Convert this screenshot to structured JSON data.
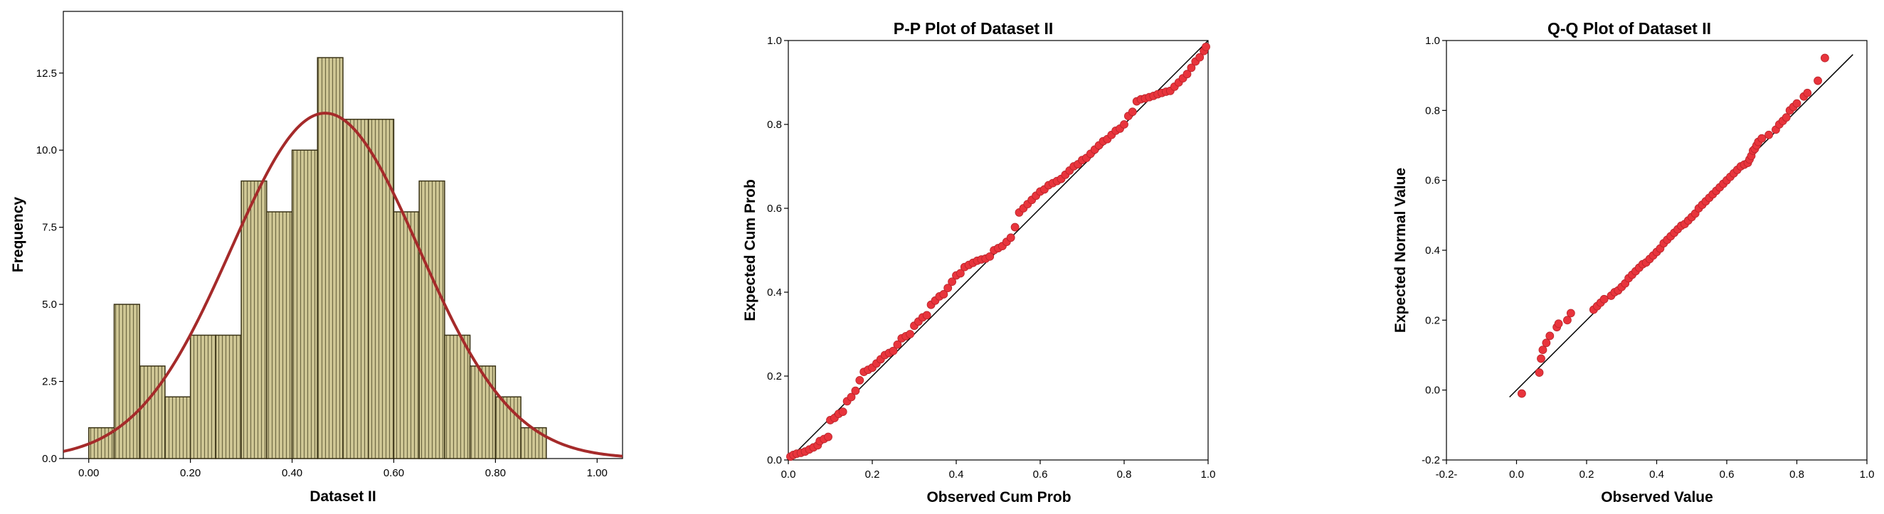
{
  "chart_data": [
    {
      "type": "bar",
      "subtype": "histogram",
      "title": "",
      "xlabel": "Dataset II",
      "ylabel": "Frequency",
      "xlim": [
        -0.05,
        1.05
      ],
      "ylim": [
        0,
        14.5
      ],
      "x_ticks": [
        0.0,
        0.2,
        0.4,
        0.6,
        0.8,
        1.0
      ],
      "x_tick_labels": [
        "0.00",
        "0.20",
        "0.40",
        "0.60",
        "0.80",
        "1.00"
      ],
      "y_ticks": [
        0,
        2.5,
        5,
        7.5,
        10,
        12.5
      ],
      "y_tick_labels": [
        "0.0",
        "2.5",
        "5.0",
        "7.5",
        "10.0",
        "12.5"
      ],
      "bin_width": 0.05,
      "bin_starts": [
        0.0,
        0.05,
        0.1,
        0.15,
        0.2,
        0.25,
        0.3,
        0.35,
        0.4,
        0.45,
        0.5,
        0.55,
        0.6,
        0.65,
        0.7,
        0.75,
        0.8,
        0.85
      ],
      "values": [
        1,
        5,
        3,
        2,
        4,
        4,
        9,
        8,
        10,
        13,
        11,
        11,
        8,
        9,
        4,
        3,
        2,
        1
      ],
      "bar_fill": "#cfc795",
      "bar_stroke": "#3a3316",
      "normal_curve": {
        "mean": 0.465,
        "peak": 11.2,
        "sd": 0.185,
        "color": "#a52a2a"
      },
      "grid": false
    },
    {
      "type": "scatter",
      "title": "P-P Plot of Dataset II",
      "xlabel": "Observed Cum Prob",
      "ylabel": "Expected Cum Prob",
      "xlim": [
        0,
        1
      ],
      "ylim": [
        0,
        1
      ],
      "x_ticks": [
        0,
        0.2,
        0.4,
        0.6,
        0.8,
        1.0
      ],
      "x_tick_labels": [
        "0.0",
        "0.2",
        "0.4",
        "0.6",
        "0.8",
        "1.0"
      ],
      "y_ticks": [
        0,
        0.2,
        0.4,
        0.6,
        0.8,
        1.0
      ],
      "y_tick_labels": [
        "0.0",
        "0.2",
        "0.4",
        "0.6",
        "0.8",
        "1.0"
      ],
      "reference_line": {
        "x": [
          0,
          1
        ],
        "y": [
          0,
          1
        ]
      },
      "point_color": "#e8343c",
      "grid": false,
      "points": [
        [
          0.005,
          0.008
        ],
        [
          0.012,
          0.012
        ],
        [
          0.02,
          0.015
        ],
        [
          0.03,
          0.017
        ],
        [
          0.04,
          0.02
        ],
        [
          0.05,
          0.025
        ],
        [
          0.06,
          0.03
        ],
        [
          0.07,
          0.035
        ],
        [
          0.075,
          0.045
        ],
        [
          0.085,
          0.05
        ],
        [
          0.095,
          0.055
        ],
        [
          0.1,
          0.095
        ],
        [
          0.11,
          0.1
        ],
        [
          0.12,
          0.11
        ],
        [
          0.13,
          0.115
        ],
        [
          0.14,
          0.14
        ],
        [
          0.15,
          0.15
        ],
        [
          0.16,
          0.165
        ],
        [
          0.17,
          0.19
        ],
        [
          0.18,
          0.21
        ],
        [
          0.19,
          0.215
        ],
        [
          0.2,
          0.22
        ],
        [
          0.21,
          0.23
        ],
        [
          0.22,
          0.24
        ],
        [
          0.23,
          0.25
        ],
        [
          0.24,
          0.255
        ],
        [
          0.25,
          0.26
        ],
        [
          0.26,
          0.275
        ],
        [
          0.27,
          0.29
        ],
        [
          0.28,
          0.295
        ],
        [
          0.29,
          0.3
        ],
        [
          0.3,
          0.32
        ],
        [
          0.31,
          0.33
        ],
        [
          0.32,
          0.34
        ],
        [
          0.33,
          0.345
        ],
        [
          0.34,
          0.37
        ],
        [
          0.35,
          0.38
        ],
        [
          0.36,
          0.39
        ],
        [
          0.37,
          0.395
        ],
        [
          0.38,
          0.41
        ],
        [
          0.39,
          0.425
        ],
        [
          0.4,
          0.44
        ],
        [
          0.41,
          0.445
        ],
        [
          0.42,
          0.46
        ],
        [
          0.43,
          0.465
        ],
        [
          0.44,
          0.47
        ],
        [
          0.45,
          0.475
        ],
        [
          0.46,
          0.478
        ],
        [
          0.47,
          0.48
        ],
        [
          0.48,
          0.485
        ],
        [
          0.49,
          0.5
        ],
        [
          0.5,
          0.505
        ],
        [
          0.51,
          0.51
        ],
        [
          0.52,
          0.52
        ],
        [
          0.53,
          0.53
        ],
        [
          0.54,
          0.555
        ],
        [
          0.55,
          0.59
        ],
        [
          0.56,
          0.6
        ],
        [
          0.57,
          0.61
        ],
        [
          0.58,
          0.62
        ],
        [
          0.59,
          0.63
        ],
        [
          0.6,
          0.64
        ],
        [
          0.61,
          0.645
        ],
        [
          0.62,
          0.655
        ],
        [
          0.63,
          0.66
        ],
        [
          0.64,
          0.665
        ],
        [
          0.65,
          0.67
        ],
        [
          0.66,
          0.68
        ],
        [
          0.67,
          0.69
        ],
        [
          0.68,
          0.7
        ],
        [
          0.69,
          0.705
        ],
        [
          0.7,
          0.715
        ],
        [
          0.71,
          0.72
        ],
        [
          0.72,
          0.73
        ],
        [
          0.73,
          0.74
        ],
        [
          0.74,
          0.75
        ],
        [
          0.75,
          0.76
        ],
        [
          0.76,
          0.765
        ],
        [
          0.77,
          0.775
        ],
        [
          0.78,
          0.785
        ],
        [
          0.79,
          0.79
        ],
        [
          0.8,
          0.8
        ],
        [
          0.81,
          0.82
        ],
        [
          0.82,
          0.83
        ],
        [
          0.83,
          0.855
        ],
        [
          0.84,
          0.86
        ],
        [
          0.85,
          0.862
        ],
        [
          0.86,
          0.865
        ],
        [
          0.87,
          0.868
        ],
        [
          0.88,
          0.872
        ],
        [
          0.89,
          0.875
        ],
        [
          0.9,
          0.878
        ],
        [
          0.91,
          0.88
        ],
        [
          0.92,
          0.89
        ],
        [
          0.93,
          0.9
        ],
        [
          0.94,
          0.91
        ],
        [
          0.95,
          0.92
        ],
        [
          0.96,
          0.935
        ],
        [
          0.97,
          0.95
        ],
        [
          0.98,
          0.96
        ],
        [
          0.99,
          0.975
        ],
        [
          0.995,
          0.985
        ]
      ]
    },
    {
      "type": "scatter",
      "title": "Q-Q Plot of Dataset II",
      "xlabel": "Observed Value",
      "ylabel": "Expected Normal Value",
      "xlim": [
        -0.2,
        1.0
      ],
      "ylim": [
        -0.2,
        1.0
      ],
      "x_ticks": [
        -0.2,
        0.0,
        0.2,
        0.4,
        0.6,
        0.8,
        1.0
      ],
      "x_tick_labels": [
        "-0.2-",
        "0.0",
        "0.2",
        "0.4",
        "0.6",
        "0.8",
        "1.0"
      ],
      "y_ticks": [
        -0.2,
        0.0,
        0.2,
        0.4,
        0.6,
        0.8,
        1.0
      ],
      "y_tick_labels": [
        "-0.2",
        "0.0",
        "0.2",
        "0.4",
        "0.6",
        "0.8",
        "1.0"
      ],
      "reference_line": {
        "x": [
          -0.02,
          0.96
        ],
        "y": [
          -0.02,
          0.96
        ]
      },
      "point_color": "#e8343c",
      "grid": false,
      "points": [
        [
          0.015,
          -0.01
        ],
        [
          0.065,
          0.05
        ],
        [
          0.07,
          0.09
        ],
        [
          0.075,
          0.115
        ],
        [
          0.085,
          0.135
        ],
        [
          0.095,
          0.155
        ],
        [
          0.115,
          0.18
        ],
        [
          0.12,
          0.19
        ],
        [
          0.145,
          0.2
        ],
        [
          0.155,
          0.22
        ],
        [
          0.22,
          0.23
        ],
        [
          0.23,
          0.24
        ],
        [
          0.24,
          0.25
        ],
        [
          0.25,
          0.26
        ],
        [
          0.27,
          0.27
        ],
        [
          0.28,
          0.28
        ],
        [
          0.29,
          0.285
        ],
        [
          0.3,
          0.295
        ],
        [
          0.31,
          0.305
        ],
        [
          0.32,
          0.32
        ],
        [
          0.33,
          0.33
        ],
        [
          0.34,
          0.34
        ],
        [
          0.35,
          0.35
        ],
        [
          0.36,
          0.36
        ],
        [
          0.37,
          0.365
        ],
        [
          0.38,
          0.375
        ],
        [
          0.39,
          0.385
        ],
        [
          0.4,
          0.395
        ],
        [
          0.41,
          0.405
        ],
        [
          0.42,
          0.42
        ],
        [
          0.43,
          0.43
        ],
        [
          0.44,
          0.44
        ],
        [
          0.45,
          0.45
        ],
        [
          0.46,
          0.46
        ],
        [
          0.47,
          0.47
        ],
        [
          0.48,
          0.475
        ],
        [
          0.49,
          0.485
        ],
        [
          0.5,
          0.495
        ],
        [
          0.51,
          0.505
        ],
        [
          0.52,
          0.52
        ],
        [
          0.53,
          0.53
        ],
        [
          0.54,
          0.54
        ],
        [
          0.55,
          0.55
        ],
        [
          0.56,
          0.56
        ],
        [
          0.57,
          0.57
        ],
        [
          0.58,
          0.58
        ],
        [
          0.59,
          0.59
        ],
        [
          0.6,
          0.6
        ],
        [
          0.61,
          0.61
        ],
        [
          0.62,
          0.62
        ],
        [
          0.63,
          0.63
        ],
        [
          0.64,
          0.64
        ],
        [
          0.65,
          0.645
        ],
        [
          0.66,
          0.65
        ],
        [
          0.665,
          0.66
        ],
        [
          0.67,
          0.67
        ],
        [
          0.675,
          0.685
        ],
        [
          0.68,
          0.69
        ],
        [
          0.685,
          0.7
        ],
        [
          0.69,
          0.71
        ],
        [
          0.7,
          0.72
        ],
        [
          0.72,
          0.73
        ],
        [
          0.74,
          0.745
        ],
        [
          0.75,
          0.76
        ],
        [
          0.76,
          0.77
        ],
        [
          0.77,
          0.78
        ],
        [
          0.78,
          0.8
        ],
        [
          0.79,
          0.81
        ],
        [
          0.8,
          0.82
        ],
        [
          0.82,
          0.84
        ],
        [
          0.83,
          0.85
        ],
        [
          0.86,
          0.885
        ],
        [
          0.88,
          0.95
        ]
      ]
    }
  ]
}
